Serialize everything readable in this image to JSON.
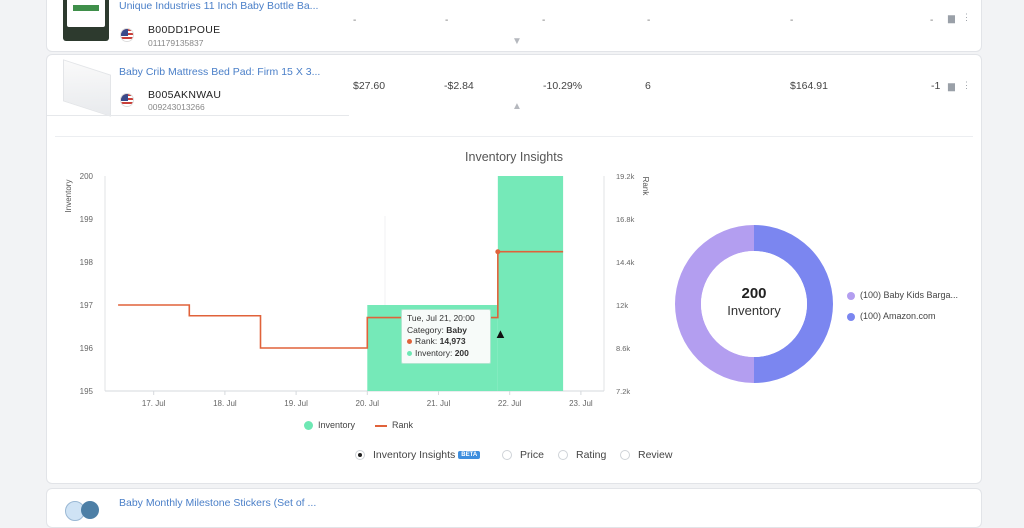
{
  "rows": [
    {
      "title": "Unique Industries 11 Inch Baby Bottle Ba...",
      "asin": "B00DD1POUE",
      "upc": "011179135837",
      "cells": [
        "-",
        "-",
        "-",
        "-",
        "-",
        "-"
      ],
      "expand_icon": "chevron-down-icon"
    },
    {
      "title": "Baby Crib Mattress Bed Pad: Firm 15 X 3...",
      "asin": "B005AKNWAU",
      "upc": "009243013266",
      "price": "$27.60",
      "change": "-$2.84",
      "change_pct": "-10.29%",
      "offers": "6",
      "revenue": "$164.91",
      "delta": "-1",
      "expand_icon": "chevron-up-icon"
    },
    {
      "title": "Baby Monthly Milestone Stickers (Set of ..."
    }
  ],
  "insights": {
    "title": "Inventory Insights",
    "tooltip": {
      "date": "Tue, Jul 21, 20:00",
      "category_label": "Category:",
      "category": "Baby",
      "rank_label": "Rank:",
      "rank": "14,973",
      "inventory_label": "Inventory:",
      "inventory": "200"
    },
    "donut": {
      "total": "200",
      "label": "Inventory"
    },
    "legend": [
      {
        "label": "(100) Baby Kids Barga...",
        "color": "#b39ef0"
      },
      {
        "label": "(100) Amazon.com",
        "color": "#7b86f0"
      }
    ],
    "tabs": [
      {
        "label": "Inventory Insights",
        "badge": "BETA",
        "selected": true
      },
      {
        "label": "Price",
        "selected": false
      },
      {
        "label": "Rating",
        "selected": false
      },
      {
        "label": "Review",
        "selected": false
      }
    ]
  },
  "chart_data": [
    {
      "type": "line",
      "title": "Inventory Insights",
      "ylabel": "Inventory",
      "y2label": "Rank",
      "x_ticks": [
        "17. Jul",
        "18. Jul",
        "19. Jul",
        "20. Jul",
        "21. Jul",
        "22. Jul",
        "23. Jul"
      ],
      "y_ticks": [
        "195",
        "196",
        "197",
        "198",
        "199",
        "200"
      ],
      "y2_ticks": [
        "7.2k",
        "8.6k",
        "12k",
        "14.4k",
        "16.8k",
        "19.2k"
      ],
      "ylim": [
        195,
        200
      ],
      "y2lim": [
        7200,
        19200
      ],
      "colors": {
        "inventory": "#6ee8b4",
        "rank": "#e0623a"
      },
      "series": [
        {
          "name": "Inventory",
          "kind": "area-step",
          "points": [
            {
              "x": "2020-07-20",
              "y": 197
            },
            {
              "x": "2020-07-21 20:00",
              "y": 200
            },
            {
              "x": "2020-07-22 18:00",
              "y": 200
            }
          ]
        },
        {
          "name": "Rank",
          "kind": "step",
          "points": [
            {
              "x": "2020-07-16 12:00",
              "y": 12000
            },
            {
              "x": "2020-07-17 12:00",
              "y": 11400
            },
            {
              "x": "2020-07-18 12:00",
              "y": 9600
            },
            {
              "x": "2020-07-20",
              "y": 11300
            },
            {
              "x": "2020-07-21 20:00",
              "y": 14973
            },
            {
              "x": "2020-07-22 18:00",
              "y": 14973
            }
          ]
        }
      ]
    },
    {
      "type": "pie",
      "center_value": "200",
      "center_label": "Inventory",
      "slices": [
        {
          "label": "(100) Baby Kids Barga...",
          "value": 100,
          "color": "#b39ef0"
        },
        {
          "label": "(100) Amazon.com",
          "value": 100,
          "color": "#7b86f0"
        }
      ]
    }
  ],
  "legend_bottom": [
    {
      "label": "Inventory",
      "color": "#6ee8b4"
    },
    {
      "label": "Rank",
      "color": "#e0623a"
    }
  ]
}
